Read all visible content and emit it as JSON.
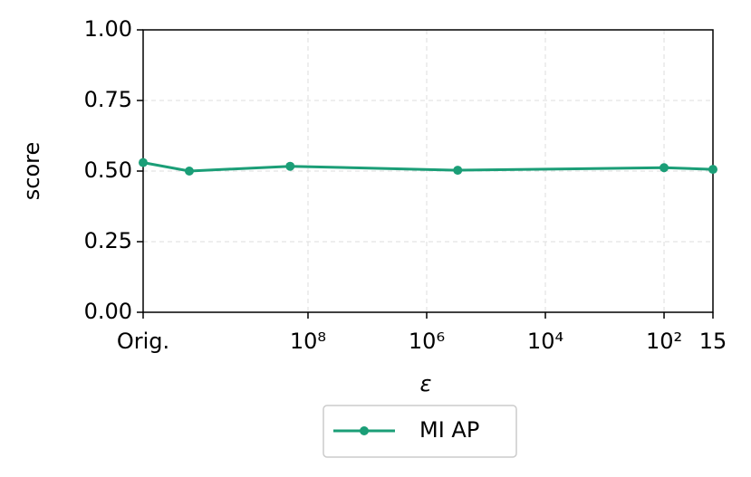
{
  "chart_data": {
    "type": "line",
    "xlabel": "ε",
    "ylabel": "score",
    "x_scale": "log",
    "x_reversed": true,
    "x": [
      60000000000,
      10000000000,
      200000000,
      300000,
      100,
      15
    ],
    "series": [
      {
        "name": "MI AP",
        "color": "#1b9e77",
        "values": [
          0.53,
          0.5,
          0.517,
          0.503,
          0.512,
          0.506
        ]
      }
    ],
    "xlim": [
      60000000000,
      15
    ],
    "xticks": [
      {
        "value": 60000000000,
        "label": "Orig."
      },
      {
        "value": 100000000,
        "label": "10⁸"
      },
      {
        "value": 1000000,
        "label": "10⁶"
      },
      {
        "value": 10000,
        "label": "10⁴"
      },
      {
        "value": 100,
        "label": "10²"
      },
      15
    ],
    "ylim": [
      0,
      1
    ],
    "yticks": [
      {
        "value": 0,
        "label": "0.00"
      },
      {
        "value": 0.25,
        "label": "0.25"
      },
      {
        "value": 0.5,
        "label": "0.50"
      },
      {
        "value": 0.75,
        "label": "0.75"
      },
      {
        "value": 1,
        "label": "1.00"
      }
    ],
    "grid": true,
    "legend": "below"
  }
}
